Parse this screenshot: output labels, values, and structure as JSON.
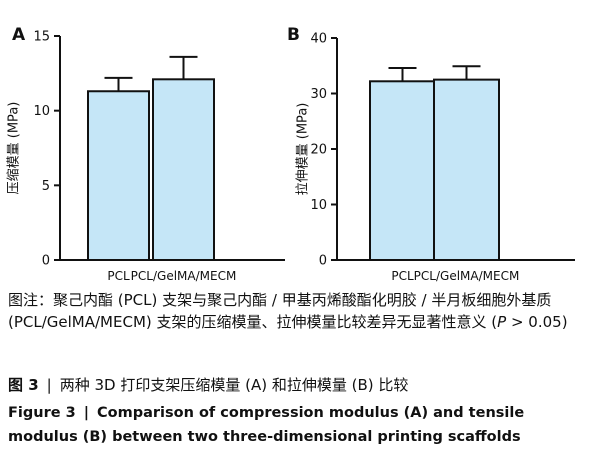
{
  "chart_data": [
    {
      "type": "bar",
      "panel": "A",
      "categories": [
        "PCL",
        "PCL/GelMA/MECM"
      ],
      "values": [
        11.3,
        12.1
      ],
      "errors": [
        0.9,
        1.5
      ],
      "ylabel": "压缩模量 (MPa)",
      "ylim": [
        0,
        15
      ],
      "yticks": [
        0,
        5,
        10,
        15
      ],
      "bar_color": "#c5e6f7",
      "grid": false
    },
    {
      "type": "bar",
      "panel": "B",
      "categories": [
        "PCL",
        "PCL/GelMA/MECM"
      ],
      "values": [
        32.2,
        32.5
      ],
      "errors": [
        2.4,
        2.4
      ],
      "ylabel": "拉伸模量 (MPa)",
      "ylim": [
        0,
        40
      ],
      "yticks": [
        0,
        10,
        20,
        30,
        40
      ],
      "bar_color": "#c5e6f7",
      "grid": false
    }
  ],
  "caption": {
    "note_prefix": "图注：",
    "note_text": "聚己内酯 (PCL) 支架与聚己内酯 / 甲基丙烯酸酯化明胶 / 半月板细胞外基质 (PCL/GelMA/MECM) 支架的压缩模量、拉伸模量比较差异无显著性意义 (",
    "note_p": "P",
    "note_tail": " > 0.05)",
    "cn_label": "图 3",
    "cn_sep": "|",
    "cn_text": "两种 3D 打印支架压缩模量 (A) 和拉伸模量 (B) 比较",
    "en_label": "Figure 3",
    "en_sep": "|",
    "en_text": "Comparison of compression modulus (A) and tensile modulus (B) between two three-dimensional printing scaffolds"
  }
}
